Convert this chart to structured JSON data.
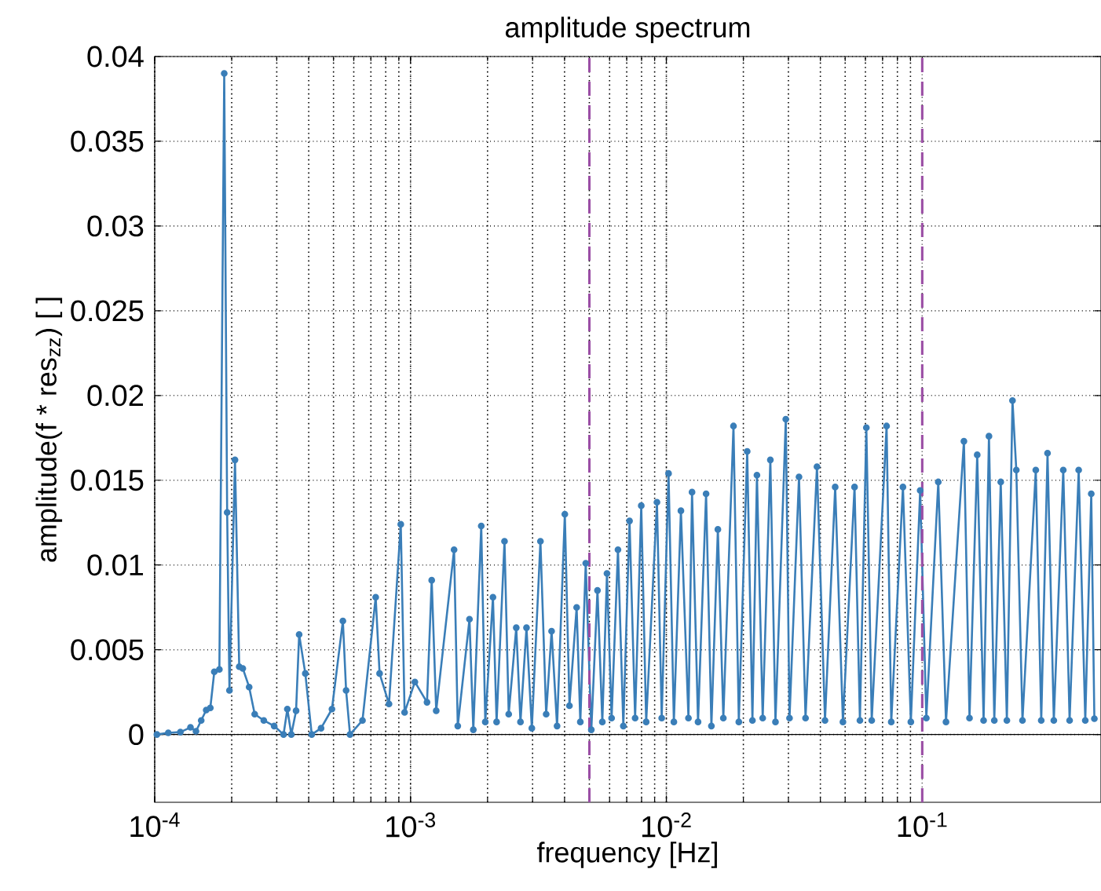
{
  "chart_data": {
    "type": "line",
    "title": "amplitude spectrum",
    "xlabel": "frequency [Hz]",
    "ylabel": "amplitude(f * res$_{zz}$) [ ]",
    "log": "x",
    "grid": true,
    "marker": "circle",
    "line_style": "solid",
    "xlim": [
      0.0001,
      0.5
    ],
    "ylim": [
      -0.004,
      0.04
    ],
    "xticks": [
      {
        "value": 0.0001,
        "label": "10$^{-4}$"
      },
      {
        "value": 0.001,
        "label": "10$^{-3}$"
      },
      {
        "value": 0.01,
        "label": "10$^{-2}$"
      },
      {
        "value": 0.1,
        "label": "10$^{-1}$"
      }
    ],
    "yticks": [
      0,
      0.005,
      0.01,
      0.015,
      0.02,
      0.025,
      0.03,
      0.035,
      0.04
    ],
    "ref_lines": [
      {
        "axis": "y",
        "value": 0,
        "color": "#000000",
        "line_style": "solid"
      },
      {
        "axis": "x",
        "value": 0.005,
        "color": "#9b4ea5",
        "line_style": "dashed"
      },
      {
        "axis": "x",
        "value": 0.1,
        "color": "#9b4ea5",
        "line_style": "dashed"
      }
    ],
    "series": [
      {
        "color": "#3a7eb8",
        "x": [
          0.000102,
          0.000113,
          0.000126,
          0.000138,
          0.000145,
          0.000152,
          0.000159,
          0.000165,
          0.000171,
          0.000179,
          0.000187,
          0.000192,
          0.000196,
          0.000206,
          0.000214,
          0.000221,
          0.000234,
          0.000246,
          0.000267,
          0.000293,
          0.000319,
          0.00033,
          0.000342,
          0.000357,
          0.000367,
          0.000388,
          0.000411,
          0.000447,
          0.000493,
          0.000544,
          0.00056,
          0.00058,
          0.000649,
          0.000731,
          0.000757,
          0.000824,
          0.000916,
          0.000948,
          0.00104,
          0.00116,
          0.00121,
          0.00126,
          0.00148,
          0.00153,
          0.0017,
          0.00176,
          0.00189,
          0.00196,
          0.0021,
          0.00217,
          0.00233,
          0.00242,
          0.00259,
          0.00269,
          0.00284,
          0.00298,
          0.00322,
          0.00339,
          0.00356,
          0.00374,
          0.00401,
          0.00418,
          0.00446,
          0.00461,
          0.00484,
          0.00509,
          0.00538,
          0.00562,
          0.00586,
          0.00611,
          0.00647,
          0.00679,
          0.00718,
          0.00755,
          0.00798,
          0.00834,
          0.00919,
          0.00959,
          0.0102,
          0.0107,
          0.0114,
          0.0122,
          0.0126,
          0.0133,
          0.0143,
          0.015,
          0.0159,
          0.0167,
          0.0183,
          0.0192,
          0.0207,
          0.0217,
          0.0226,
          0.0238,
          0.0255,
          0.0267,
          0.0293,
          0.0303,
          0.033,
          0.035,
          0.0388,
          0.0417,
          0.0457,
          0.049,
          0.0544,
          0.0571,
          0.0605,
          0.0635,
          0.0726,
          0.0757,
          0.0841,
          0.0903,
          0.0982,
          0.1038,
          0.1156,
          0.1239,
          0.1456,
          0.1531,
          0.1641,
          0.1738,
          0.1824,
          0.1914,
          0.2028,
          0.2143,
          0.2254,
          0.2333,
          0.2466,
          0.278,
          0.292,
          0.309,
          0.327,
          0.356,
          0.377,
          0.409,
          0.434,
          0.458,
          0.471
        ],
        "values": [
          0,
          0.0001,
          0.00014,
          0.00042,
          0.00019,
          0.00083,
          0.00144,
          0.00157,
          0.0037,
          0.00384,
          0.039,
          0.0131,
          0.0026,
          0.0162,
          0.004,
          0.0039,
          0.0028,
          0.0012,
          0.00083,
          0.0005,
          0,
          0.0015,
          0,
          0.0014,
          0.0059,
          0.0036,
          0,
          0.00037,
          0.0015,
          0.0067,
          0.0026,
          0,
          0.00083,
          0.0081,
          0.0036,
          0.0018,
          0.0124,
          0.0013,
          0.0031,
          0.0019,
          0.0091,
          0.0014,
          0.0109,
          0.0005,
          0.0068,
          0.00028,
          0.0123,
          0.00074,
          0.0081,
          0.00074,
          0.0114,
          0.0012,
          0.0063,
          0.00074,
          0.0063,
          0.00037,
          0.0114,
          0.0012,
          0.0061,
          0.0005,
          0.013,
          0.0017,
          0.0075,
          0.00074,
          0.0101,
          0.00028,
          0.0085,
          0.00074,
          0.0095,
          0.00097,
          0.0109,
          0.0005,
          0.0126,
          0.00097,
          0.0135,
          0.00074,
          0.0137,
          0.00097,
          0.0154,
          0.00074,
          0.0132,
          0.00097,
          0.0143,
          0.00074,
          0.0142,
          0.0005,
          0.0121,
          0.00097,
          0.0182,
          0.00074,
          0.0167,
          0.00083,
          0.0153,
          0.00097,
          0.0162,
          0.00074,
          0.0186,
          0.00097,
          0.0152,
          0.00097,
          0.0158,
          0.00083,
          0.0146,
          0.00074,
          0.0146,
          0.00083,
          0.0181,
          0.00083,
          0.0182,
          0.00074,
          0.0146,
          0.00074,
          0.0144,
          0.00097,
          0.0149,
          0.00074,
          0.0173,
          0.00097,
          0.0165,
          0.00083,
          0.0176,
          0.00083,
          0.0149,
          0.00083,
          0.0197,
          0.0156,
          0.00083,
          0.0156,
          0.00083,
          0.0166,
          0.00083,
          0.0156,
          0.00083,
          0.0156,
          0.00083,
          0.0142,
          0.00093
        ]
      }
    ]
  }
}
